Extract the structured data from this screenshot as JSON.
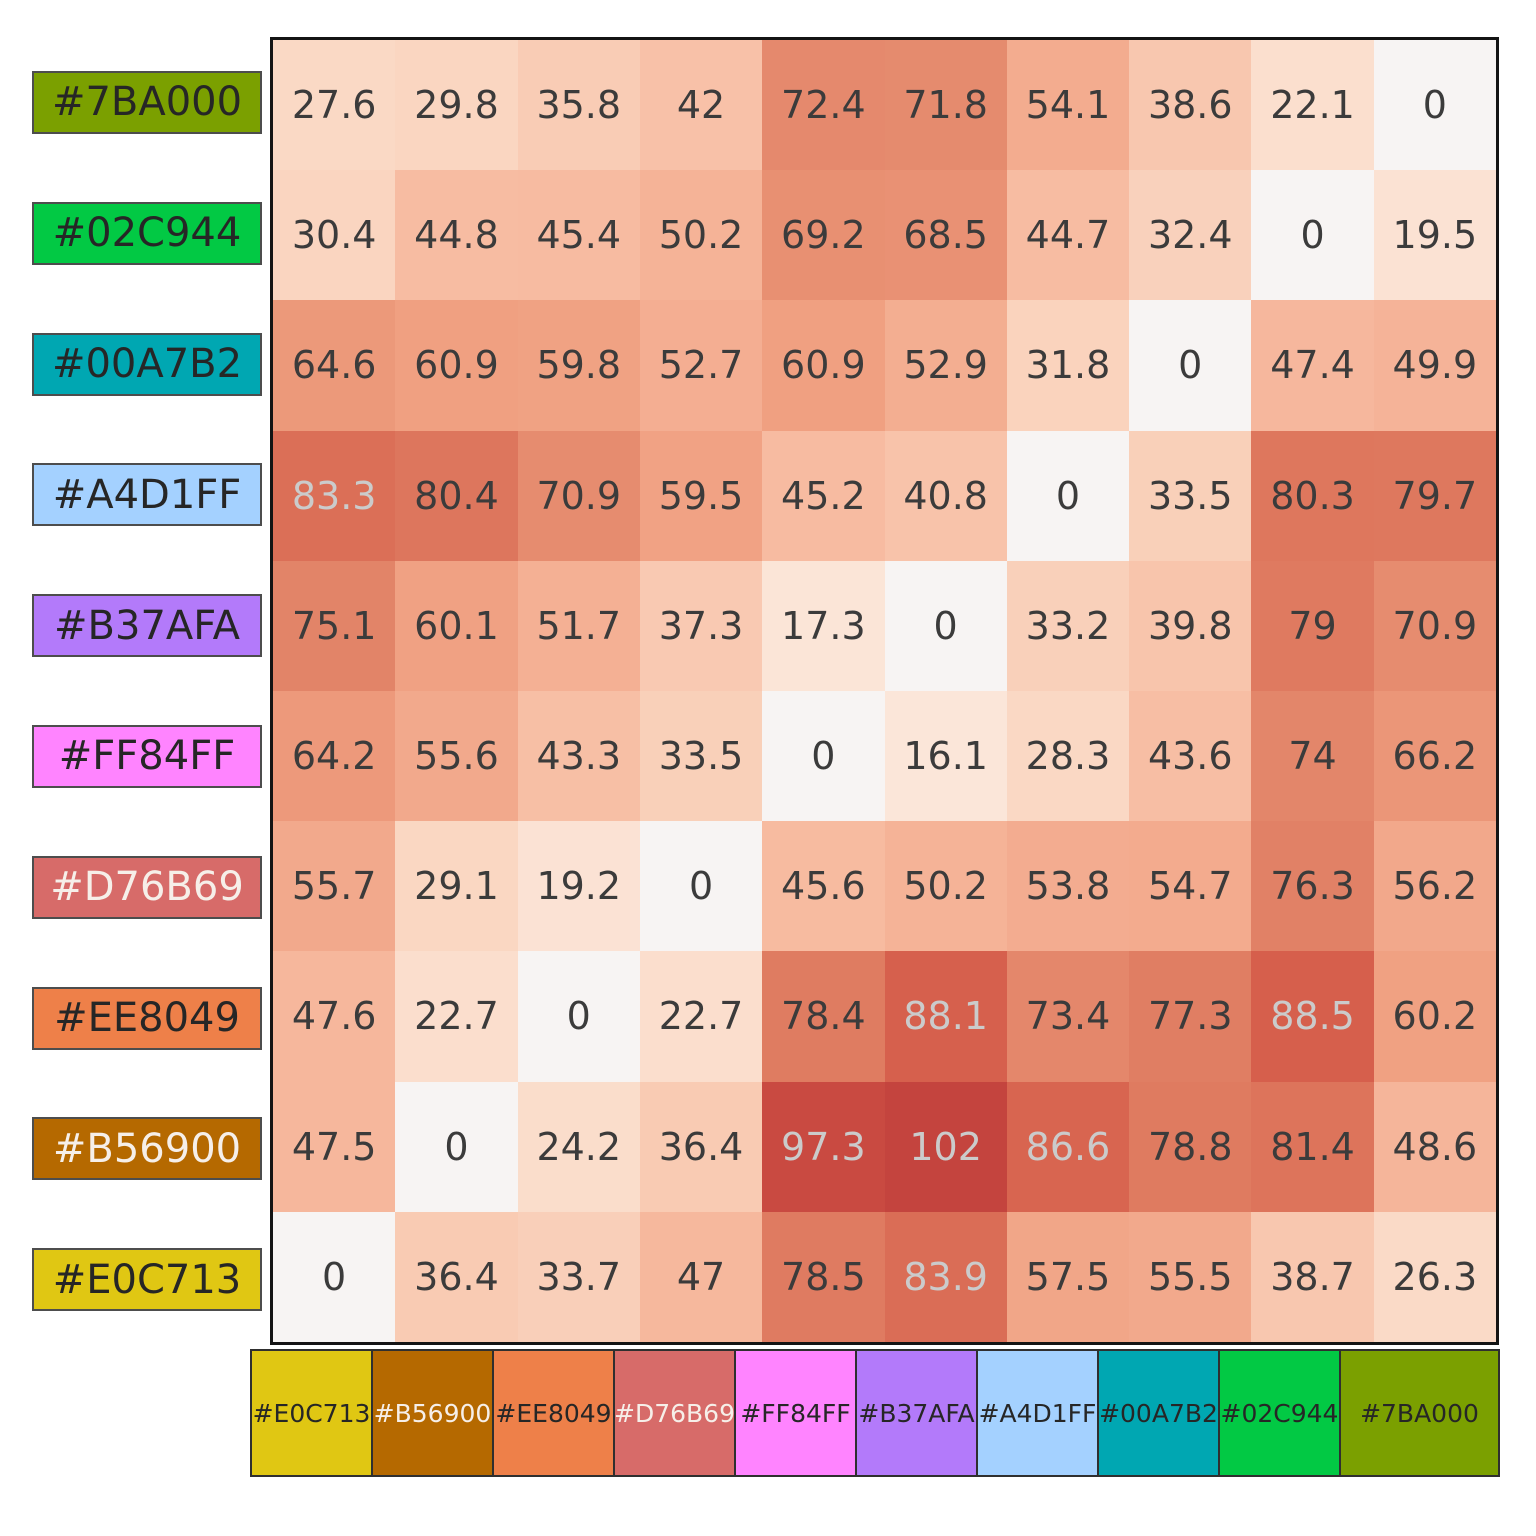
{
  "figure": {
    "background": "#ffffff",
    "title": ""
  },
  "chart_data": {
    "type": "heatmap",
    "title": "",
    "xlabel": "",
    "ylabel": "",
    "grid": false,
    "legend_position": "row swatches left, column swatches bottom",
    "rows": [
      {
        "label": "#7BA000",
        "swatch": "#7BA000",
        "label_style": "dark"
      },
      {
        "label": "#02C944",
        "swatch": "#02C944",
        "label_style": "dark"
      },
      {
        "label": "#00A7B2",
        "swatch": "#00A7B2",
        "label_style": "dark"
      },
      {
        "label": "#A4D1FF",
        "swatch": "#A4D1FF",
        "label_style": "dark"
      },
      {
        "label": "#B37AFA",
        "swatch": "#B37AFA",
        "label_style": "dark"
      },
      {
        "label": "#FF84FF",
        "swatch": "#FF84FF",
        "label_style": "dark"
      },
      {
        "label": "#D76B69",
        "swatch": "#D76B69",
        "label_style": "light"
      },
      {
        "label": "#EE8049",
        "swatch": "#EE8049",
        "label_style": "dark"
      },
      {
        "label": "#B56900",
        "swatch": "#B56900",
        "label_style": "light"
      },
      {
        "label": "#E0C713",
        "swatch": "#E0C713",
        "label_style": "dark"
      }
    ],
    "columns": [
      {
        "label": "#E0C713",
        "swatch": "#E0C713",
        "label_style": "dark"
      },
      {
        "label": "#B56900",
        "swatch": "#B56900",
        "label_style": "light"
      },
      {
        "label": "#EE8049",
        "swatch": "#EE8049",
        "label_style": "dark"
      },
      {
        "label": "#D76B69",
        "swatch": "#D76B69",
        "label_style": "light"
      },
      {
        "label": "#FF84FF",
        "swatch": "#FF84FF",
        "label_style": "dark"
      },
      {
        "label": "#B37AFA",
        "swatch": "#B37AFA",
        "label_style": "dark"
      },
      {
        "label": "#A4D1FF",
        "swatch": "#A4D1FF",
        "label_style": "dark"
      },
      {
        "label": "#00A7B2",
        "swatch": "#00A7B2",
        "label_style": "dark"
      },
      {
        "label": "#02C944",
        "swatch": "#02C944",
        "label_style": "dark"
      },
      {
        "label": "#7BA000",
        "swatch": "#7BA000",
        "label_style": "dark"
      }
    ],
    "values": [
      [
        27.6,
        29.8,
        35.8,
        42,
        72.4,
        71.8,
        54.1,
        38.6,
        22.1,
        0
      ],
      [
        30.4,
        44.8,
        45.4,
        50.2,
        69.2,
        68.5,
        44.7,
        32.4,
        0,
        19.5
      ],
      [
        64.6,
        60.9,
        59.8,
        52.7,
        60.9,
        52.9,
        31.8,
        0,
        47.4,
        49.9
      ],
      [
        83.3,
        80.4,
        70.9,
        59.5,
        45.2,
        40.8,
        0,
        33.5,
        80.3,
        79.7
      ],
      [
        75.1,
        60.1,
        51.7,
        37.3,
        17.3,
        0,
        33.2,
        39.8,
        79,
        70.9
      ],
      [
        64.2,
        55.6,
        43.3,
        33.5,
        0,
        16.1,
        28.3,
        43.6,
        74,
        66.2
      ],
      [
        55.7,
        29.1,
        19.2,
        0,
        45.6,
        50.2,
        53.8,
        54.7,
        76.3,
        56.2
      ],
      [
        47.6,
        22.7,
        0,
        22.7,
        78.4,
        88.1,
        73.4,
        77.3,
        88.5,
        60.2
      ],
      [
        47.5,
        0,
        24.2,
        36.4,
        97.3,
        102,
        86.6,
        78.8,
        81.4,
        48.6
      ],
      [
        0,
        36.4,
        33.7,
        47,
        78.5,
        83.9,
        57.5,
        55.5,
        38.7,
        26.3
      ]
    ],
    "value_range": [
      0,
      102
    ],
    "cell_colormap_anchors": [
      [
        0,
        "#F7F4F3"
      ],
      [
        16.1,
        "#FBE6D9"
      ],
      [
        29.8,
        "#FAD6C1"
      ],
      [
        44.8,
        "#F7BCA2"
      ],
      [
        60.9,
        "#F0A081"
      ],
      [
        75.1,
        "#E28468"
      ],
      [
        83.3,
        "#DB6F57"
      ],
      [
        88.5,
        "#D65F4C"
      ],
      [
        97.3,
        "#C94A41"
      ],
      [
        102,
        "#C4443E"
      ]
    ],
    "value_text": {
      "dark": "#3b3b3b",
      "light": "#cbcbcb",
      "light_threshold": 82.5
    },
    "swatch_text": {
      "dark": "#262626",
      "light": "#F6EFE9"
    },
    "borders": {
      "matrix": "#141414",
      "row_swatch": "#4d4d4d",
      "column_swatch": "#2f2f2f"
    }
  }
}
